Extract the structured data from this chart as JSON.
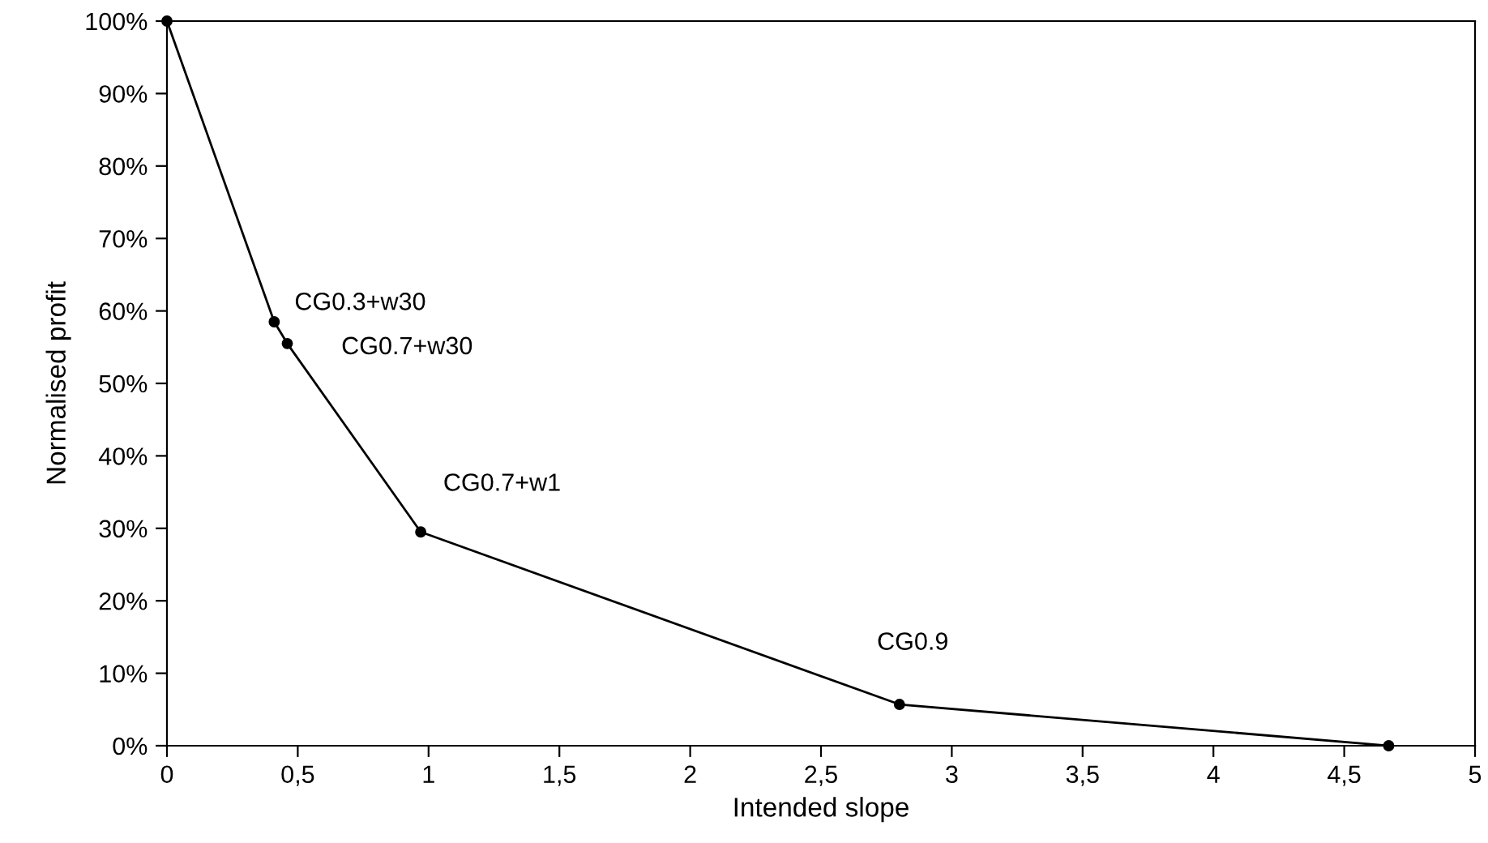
{
  "chart_data": {
    "type": "line",
    "xlabel": "Intended slope",
    "ylabel": "Normalised profit",
    "x": [
      0,
      0.41,
      0.46,
      0.97,
      2.8,
      4.67
    ],
    "series": [
      {
        "color": "#000000",
        "values": [
          100,
          58.5,
          55.5,
          29.5,
          5.7,
          0
        ]
      }
    ],
    "marker": "circle",
    "line_style": "solid",
    "grid": false,
    "legend": false,
    "xlim": [
      0,
      5
    ],
    "ylim": [
      0,
      100
    ],
    "xticks": [
      0,
      {
        "value": 0.5,
        "label": "0,5"
      },
      1,
      {
        "value": 1.5,
        "label": "1,5"
      },
      2,
      {
        "value": 2.5,
        "label": "2,5"
      },
      3,
      {
        "value": 3.5,
        "label": "3,5"
      },
      4,
      {
        "value": 4.5,
        "label": "4,5"
      },
      5
    ],
    "yticks": [
      {
        "value": 0,
        "label": "0%"
      },
      {
        "value": 10,
        "label": "10%"
      },
      {
        "value": 20,
        "label": "20%"
      },
      {
        "value": 30,
        "label": "30%"
      },
      {
        "value": 40,
        "label": "40%"
      },
      {
        "value": 50,
        "label": "50%"
      },
      {
        "value": 60,
        "label": "60%"
      },
      {
        "value": 70,
        "label": "70%"
      },
      {
        "value": 80,
        "label": "80%"
      },
      {
        "value": 90,
        "label": "90%"
      },
      {
        "value": 100,
        "label": "100%"
      }
    ],
    "annotations": [
      {
        "text": "CG0.3+w30",
        "x": 0.41,
        "y": 58.5
      },
      {
        "text": "CG0.7+w30",
        "x": 0.46,
        "y": 55.5
      },
      {
        "text": "CG0.7+w1",
        "x": 0.97,
        "y": 29.5
      },
      {
        "text": "CG0.9",
        "x": 2.8,
        "y": 5.7
      }
    ]
  }
}
